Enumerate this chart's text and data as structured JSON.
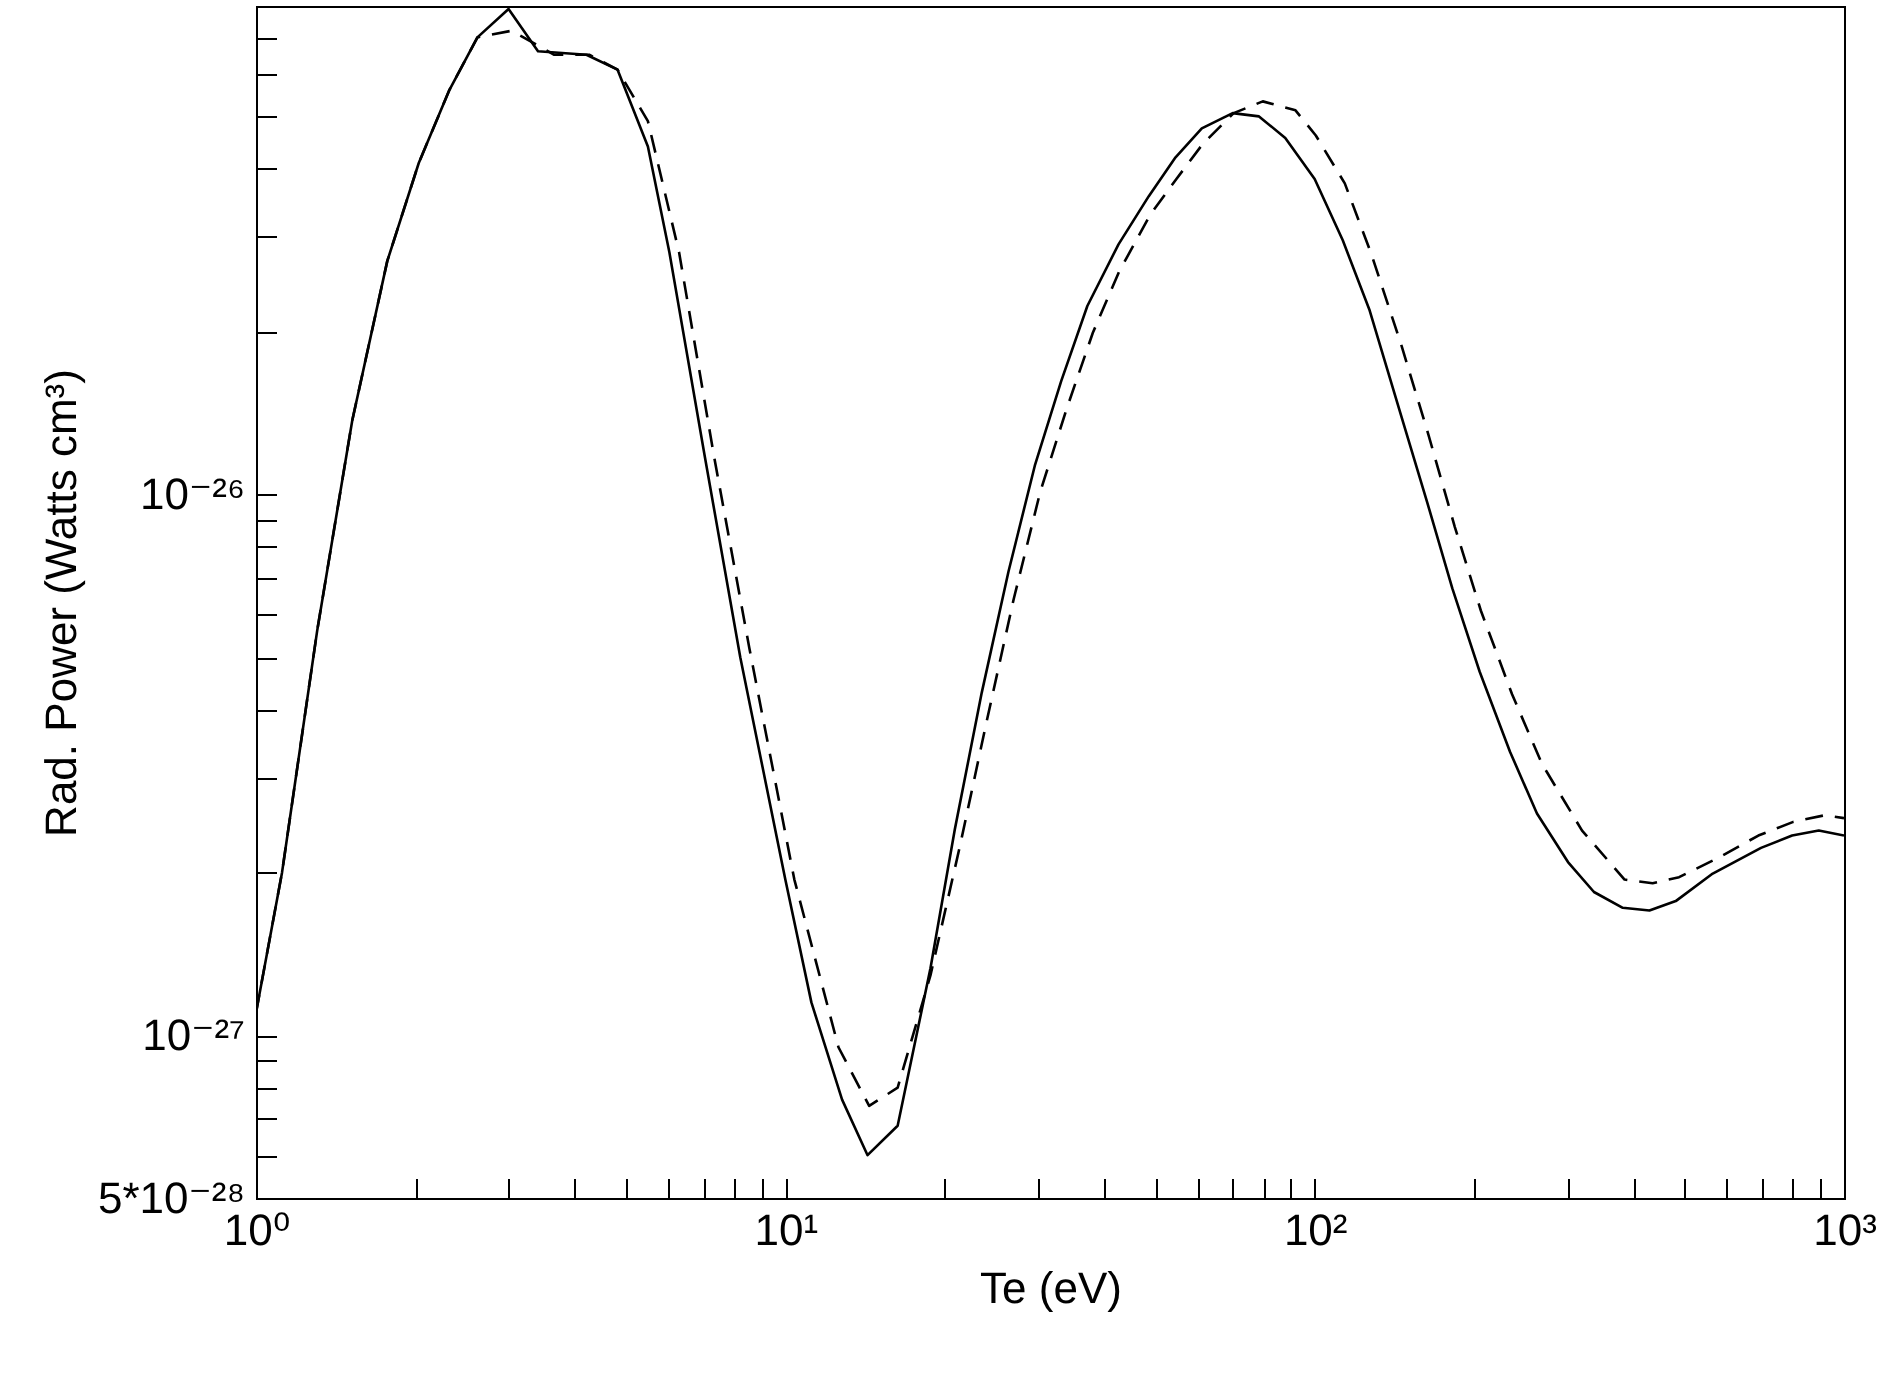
{
  "chart_data": {
    "type": "line",
    "xlabel": "Te (eV)",
    "ylabel": "Rad. Power (Watts cm³)",
    "log": "xy",
    "grid": false,
    "xlim": [
      1,
      1000
    ],
    "ylim": [
      5e-28,
      8e-26
    ],
    "xticks": [
      {
        "value": 1,
        "label": "10⁰"
      },
      {
        "value": 2,
        "label": null
      },
      {
        "value": 3,
        "label": null
      },
      {
        "value": 4,
        "label": null
      },
      {
        "value": 5,
        "label": null
      },
      {
        "value": 6,
        "label": null
      },
      {
        "value": 7,
        "label": null
      },
      {
        "value": 8,
        "label": null
      },
      {
        "value": 9,
        "label": null
      },
      {
        "value": 10,
        "label": "10¹"
      },
      {
        "value": 20,
        "label": null
      },
      {
        "value": 30,
        "label": null
      },
      {
        "value": 40,
        "label": null
      },
      {
        "value": 50,
        "label": null
      },
      {
        "value": 60,
        "label": null
      },
      {
        "value": 70,
        "label": null
      },
      {
        "value": 80,
        "label": null
      },
      {
        "value": 90,
        "label": null
      },
      {
        "value": 100,
        "label": "10²"
      },
      {
        "value": 200,
        "label": null
      },
      {
        "value": 300,
        "label": null
      },
      {
        "value": 400,
        "label": null
      },
      {
        "value": 500,
        "label": null
      },
      {
        "value": 600,
        "label": null
      },
      {
        "value": 700,
        "label": null
      },
      {
        "value": 800,
        "label": null
      },
      {
        "value": 900,
        "label": null
      },
      {
        "value": 1000,
        "label": "10³"
      }
    ],
    "yticks": [
      {
        "value": 5e-28,
        "label": "5*10⁻²⁸"
      },
      {
        "value": 6e-28,
        "label": null
      },
      {
        "value": 7e-28,
        "label": null
      },
      {
        "value": 8e-28,
        "label": null
      },
      {
        "value": 9e-28,
        "label": null
      },
      {
        "value": 1e-27,
        "label": "10⁻²⁷"
      },
      {
        "value": 2e-27,
        "label": null
      },
      {
        "value": 3e-27,
        "label": null
      },
      {
        "value": 4e-27,
        "label": null
      },
      {
        "value": 5e-27,
        "label": null
      },
      {
        "value": 6e-27,
        "label": null
      },
      {
        "value": 7e-27,
        "label": null
      },
      {
        "value": 8e-27,
        "label": null
      },
      {
        "value": 9e-27,
        "label": null
      },
      {
        "value": 1e-26,
        "label": "10⁻²⁶"
      },
      {
        "value": 2e-26,
        "label": null
      },
      {
        "value": 3e-26,
        "label": null
      },
      {
        "value": 4e-26,
        "label": null
      },
      {
        "value": 5e-26,
        "label": null
      },
      {
        "value": 6e-26,
        "label": null
      },
      {
        "value": 7e-26,
        "label": null
      }
    ],
    "series": [
      {
        "color": "#000000",
        "line_style": "solid",
        "x": [
          1,
          1.12,
          1.305,
          1.52,
          1.77,
          2.03,
          2.32,
          2.62,
          3.0,
          3.41,
          4.21,
          4.82,
          5.5,
          6.04,
          7.05,
          8.22,
          10,
          11.2,
          12.8,
          14.3,
          16.3,
          18.8,
          20.9,
          23.5,
          26.4,
          29.6,
          33.2,
          37.2,
          42.6,
          48.6,
          54.6,
          61.2,
          70,
          78.5,
          88,
          100,
          113,
          127,
          145,
          163,
          182,
          205,
          234,
          263,
          301,
          337,
          382,
          429,
          481,
          565,
          697,
          798,
          896,
          1000
        ],
        "values": [
          1.1e-27,
          2e-27,
          5.6e-27,
          1.37e-26,
          2.7e-26,
          4.1e-26,
          5.6e-26,
          7e-26,
          7.9e-26,
          6.6e-26,
          6.5e-26,
          6.1e-26,
          4.4e-26,
          2.8e-26,
          1.17e-26,
          5e-27,
          1.94e-27,
          1.15e-27,
          7.6e-28,
          6e-28,
          6.8e-28,
          1.33e-27,
          2.4e-27,
          4.3e-27,
          7.2e-27,
          1.13e-26,
          1.62e-26,
          2.23e-26,
          2.9e-26,
          3.56e-26,
          4.2e-26,
          4.75e-26,
          5.07e-26,
          5e-26,
          4.56e-26,
          3.83e-26,
          2.95e-26,
          2.19e-26,
          1.42e-26,
          9.7e-27,
          6.7e-27,
          4.7e-27,
          3.34e-27,
          2.57e-27,
          2.09e-27,
          1.84e-27,
          1.72e-27,
          1.7e-27,
          1.77e-27,
          1.99e-27,
          2.22e-27,
          2.34e-27,
          2.39e-27,
          2.34e-27
        ]
      },
      {
        "color": "#000000",
        "line_style": "dashed",
        "x": [
          1,
          1.12,
          1.305,
          1.52,
          1.77,
          2.03,
          2.32,
          2.62,
          3.04,
          3.66,
          4.26,
          4.82,
          5.5,
          6.3,
          7.34,
          8.55,
          10.4,
          12.6,
          14.4,
          16.3,
          18.8,
          21.4,
          24.0,
          27.0,
          30.3,
          34.0,
          38.1,
          42.7,
          48.9,
          54.8,
          61.5,
          70.3,
          79.8,
          92,
          100.5,
          114,
          128,
          146,
          164,
          184,
          206,
          236,
          269,
          320,
          385,
          435,
          488,
          580,
          689,
          802,
          918,
          1000
        ],
        "values": [
          1.1e-27,
          2e-27,
          5.6e-27,
          1.37e-26,
          2.7e-26,
          4.1e-26,
          5.6e-26,
          7e-26,
          7.2e-26,
          6.5e-26,
          6.5e-26,
          6.1e-26,
          4.9e-26,
          2.8e-26,
          1.17e-26,
          5.2e-27,
          1.94e-27,
          9.5e-28,
          7.4e-28,
          8e-28,
          1.29e-27,
          2.25e-27,
          3.8e-27,
          6.4e-27,
          1.01e-26,
          1.44e-26,
          1.99e-26,
          2.58e-26,
          3.29e-26,
          3.83e-26,
          4.45e-26,
          5.07e-26,
          5.33e-26,
          5.13e-26,
          4.61e-26,
          3.76e-26,
          2.78e-26,
          1.88e-26,
          1.29e-26,
          8.7e-27,
          6.1e-27,
          4.27e-27,
          3.17e-27,
          2.39e-27,
          1.94e-27,
          1.91e-27,
          1.96e-27,
          2.13e-27,
          2.34e-27,
          2.48e-27,
          2.55e-27,
          2.52e-27
        ]
      }
    ]
  }
}
